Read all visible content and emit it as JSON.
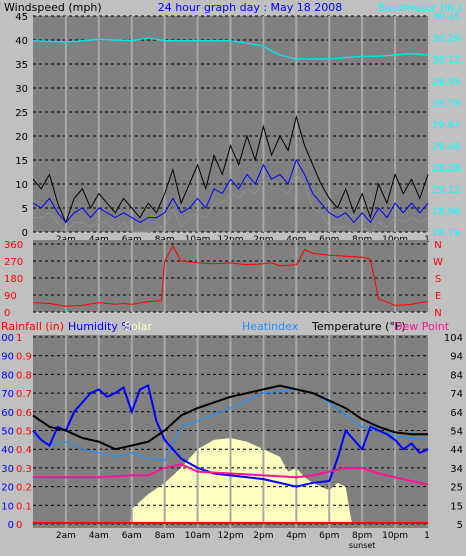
{
  "header": {
    "left": "Windspeed (mph)",
    "center": "24 hour graph day : May 18 2008",
    "right": "Barometer (in.)"
  },
  "colors": {
    "background": "#c0c0c0",
    "plot_bg": "#808080",
    "wind_avg": "#0000ff",
    "wind_gust": "#000000",
    "wind_extra": "#909090",
    "barometer": "#00e5e5",
    "direction": "#ff0000",
    "humidity": "#0000ff",
    "heatindex": "#1e90ff",
    "temperature": "#000000",
    "dewpoint": "#ff1493",
    "solar": "#ffffc0",
    "rain": "#ff0000",
    "label_blue": "#0000ff",
    "label_red": "#ff0000",
    "label_cyan": "#00ffff"
  },
  "time_labels": [
    "2am",
    "4am",
    "6am",
    "8am",
    "10am",
    "12pm",
    "2pm",
    "4pm",
    "6pm",
    "8pm",
    "10pm"
  ],
  "sunset_label": "sunset",
  "right_end_tick": "1",
  "legend": {
    "rainfall": "Rainfall (in)",
    "humidity": "Humidity %",
    "solar": "Solar",
    "heatindex": "Heatindex",
    "temperature": "Temperature (°F)",
    "dewpoint": "Dew Point"
  },
  "chart_data": [
    {
      "type": "line",
      "title": "24 hour graph day : May 18 2008",
      "ylabel": "Windspeed (mph)",
      "y2label": "Barometer (in.)",
      "x_unit": "hours since midnight",
      "xlim": [
        0,
        24
      ],
      "ylim": [
        0,
        45
      ],
      "y_ticks": [
        "0",
        "5",
        "10",
        "15",
        "20",
        "25",
        "30",
        "35",
        "40",
        "45"
      ],
      "y2_ticks": [
        "28.79",
        "28.96",
        "29.12",
        "29.29",
        "29.46",
        "29.62",
        "29.79",
        "29.95",
        "30.12",
        "30.29",
        "30.45"
      ],
      "series": [
        {
          "name": "gust",
          "x": [
            0,
            0.5,
            1,
            1.5,
            2,
            2.5,
            3,
            3.5,
            4,
            4.5,
            5,
            5.5,
            6,
            6.5,
            7,
            7.5,
            8,
            8.5,
            9,
            9.5,
            10,
            10.5,
            11,
            11.5,
            12,
            12.5,
            13,
            13.5,
            14,
            14.5,
            15,
            15.5,
            16,
            16.5,
            17,
            17.5,
            18,
            18.5,
            19,
            19.5,
            20,
            20.5,
            21,
            21.5,
            22,
            22.5,
            23,
            23.5,
            24
          ],
          "values": [
            11,
            9,
            12,
            6,
            2,
            7,
            9,
            5,
            8,
            6,
            4,
            7,
            5,
            3,
            6,
            4,
            8,
            13,
            6,
            10,
            14,
            9,
            16,
            12,
            18,
            14,
            20,
            15,
            22,
            16,
            20,
            17,
            24,
            18,
            14,
            10,
            7,
            5,
            9,
            4,
            8,
            3,
            10,
            6,
            12,
            8,
            11,
            7,
            12
          ]
        },
        {
          "name": "average",
          "x": [
            0,
            0.5,
            1,
            1.5,
            2,
            2.5,
            3,
            3.5,
            4,
            4.5,
            5,
            5.5,
            6,
            6.5,
            7,
            7.5,
            8,
            8.5,
            9,
            9.5,
            10,
            10.5,
            11,
            11.5,
            12,
            12.5,
            13,
            13.5,
            14,
            14.5,
            15,
            15.5,
            16,
            16.5,
            17,
            17.5,
            18,
            18.5,
            19,
            19.5,
            20,
            20.5,
            21,
            21.5,
            22,
            22.5,
            23,
            23.5,
            24
          ],
          "values": [
            6,
            5,
            7,
            4,
            2,
            4,
            5,
            3,
            5,
            4,
            3,
            4,
            3,
            2,
            3,
            3,
            4,
            7,
            4,
            5,
            7,
            5,
            9,
            8,
            11,
            9,
            12,
            10,
            14,
            11,
            12,
            10,
            15,
            12,
            8,
            6,
            4,
            3,
            4,
            2,
            4,
            2,
            5,
            3,
            6,
            4,
            6,
            4,
            6
          ]
        },
        {
          "name": "barometer",
          "x": [
            0,
            2,
            4,
            6,
            7,
            8,
            10,
            12,
            14,
            14.5,
            15,
            16,
            17,
            18,
            19,
            20,
            21,
            22,
            23,
            24
          ],
          "values": [
            30.26,
            30.25,
            30.27,
            30.26,
            30.28,
            30.26,
            30.26,
            30.26,
            30.22,
            30.18,
            30.15,
            30.12,
            30.12,
            30.12,
            30.13,
            30.14,
            30.14,
            30.15,
            30.16,
            30.15
          ],
          "axis": "right"
        }
      ]
    },
    {
      "type": "line",
      "ylabel": "Wind direction (degrees)",
      "ylim": [
        0,
        360
      ],
      "y_ticks": [
        "0",
        "90",
        "180",
        "270",
        "360"
      ],
      "compass_labels": [
        "N",
        "W",
        "S",
        "E",
        "N"
      ],
      "series": [
        {
          "name": "direction",
          "x": [
            0,
            1,
            2,
            3,
            4,
            5,
            5.5,
            6,
            7,
            7.8,
            8,
            8.5,
            9,
            10,
            11,
            12,
            13,
            14,
            14.5,
            15,
            16,
            16.5,
            17,
            18,
            19,
            20,
            20.5,
            21,
            22,
            23,
            23.5,
            24
          ],
          "values": [
            50,
            45,
            30,
            35,
            50,
            40,
            45,
            40,
            55,
            60,
            270,
            350,
            270,
            260,
            255,
            260,
            250,
            255,
            260,
            245,
            250,
            330,
            310,
            300,
            295,
            290,
            280,
            70,
            35,
            40,
            50,
            55
          ]
        }
      ]
    },
    {
      "type": "line",
      "ylim": [
        0,
        100
      ],
      "y_ticks": [
        "0",
        "10",
        "20",
        "30",
        "40",
        "50",
        "60",
        "70",
        "80",
        "90",
        "100"
      ],
      "rain_ticks": [
        "0",
        "0.1",
        "0.2",
        "0.3",
        "0.4",
        "0.5",
        "0.6",
        "0.7",
        "0.8",
        "0.9",
        "1"
      ],
      "temp_ticks": [
        "5",
        "15",
        "25",
        "34",
        "44",
        "54",
        "64",
        "74",
        "84",
        "94",
        "104"
      ],
      "series": [
        {
          "name": "Humidity",
          "x": [
            0,
            0.5,
            1,
            1.5,
            2,
            2.5,
            3,
            3.5,
            4,
            4.5,
            5,
            5.5,
            6,
            6.5,
            7,
            7.5,
            8,
            8.5,
            9,
            10,
            11,
            12,
            13,
            14,
            15,
            16,
            17,
            18,
            18.5,
            19,
            19.5,
            20,
            20.5,
            21,
            21.5,
            22,
            22.5,
            23,
            23.5,
            24
          ],
          "values": [
            50,
            45,
            42,
            52,
            50,
            60,
            65,
            70,
            72,
            68,
            70,
            73,
            60,
            72,
            74,
            55,
            45,
            40,
            35,
            30,
            27,
            26,
            25,
            24,
            22,
            20,
            22,
            23,
            35,
            50,
            45,
            40,
            52,
            50,
            48,
            45,
            40,
            43,
            38,
            40
          ]
        },
        {
          "name": "Heatindex",
          "x": [
            0,
            1,
            2,
            3,
            4,
            5,
            6,
            7,
            8,
            9,
            10,
            12,
            14,
            16,
            17,
            18,
            19,
            20,
            21,
            22,
            23,
            24
          ],
          "values": [
            48,
            42,
            44,
            40,
            38,
            36,
            38,
            35,
            34,
            52,
            55,
            62,
            70,
            72,
            70,
            65,
            58,
            52,
            50,
            47,
            46,
            45
          ]
        },
        {
          "name": "Temperature",
          "x": [
            0,
            1,
            2,
            3,
            4,
            5,
            6,
            7,
            8,
            9,
            10,
            12,
            14,
            15,
            16,
            17,
            18,
            19,
            20,
            21,
            22,
            23,
            24
          ],
          "values": [
            58,
            52,
            50,
            46,
            44,
            40,
            42,
            44,
            50,
            58,
            62,
            68,
            72,
            74,
            72,
            70,
            66,
            62,
            56,
            52,
            49,
            48,
            48
          ]
        },
        {
          "name": "Dew Point",
          "x": [
            0,
            2,
            4,
            6,
            7,
            8,
            9,
            10,
            12,
            14,
            16,
            17,
            18,
            19,
            20,
            21,
            22,
            23,
            24
          ],
          "values": [
            25,
            25,
            25,
            26,
            26,
            30,
            32,
            28,
            27,
            26,
            25,
            26,
            28,
            30,
            30,
            27,
            25,
            23,
            21
          ]
        },
        {
          "name": "Solar",
          "x": [
            0,
            5.9,
            6,
            6.5,
            7,
            8,
            9,
            10,
            11,
            12,
            13,
            14,
            15,
            15.5,
            16,
            16.5,
            17,
            17.5,
            18,
            18.5,
            19,
            19.3,
            19.4,
            24
          ],
          "values": [
            0,
            0,
            8,
            12,
            16,
            22,
            30,
            40,
            45,
            46,
            44,
            40,
            36,
            28,
            30,
            25,
            22,
            20,
            18,
            22,
            20,
            4,
            0,
            0
          ]
        },
        {
          "name": "Rainfall",
          "x": [
            0,
            24
          ],
          "values": [
            0,
            0
          ]
        }
      ]
    }
  ]
}
